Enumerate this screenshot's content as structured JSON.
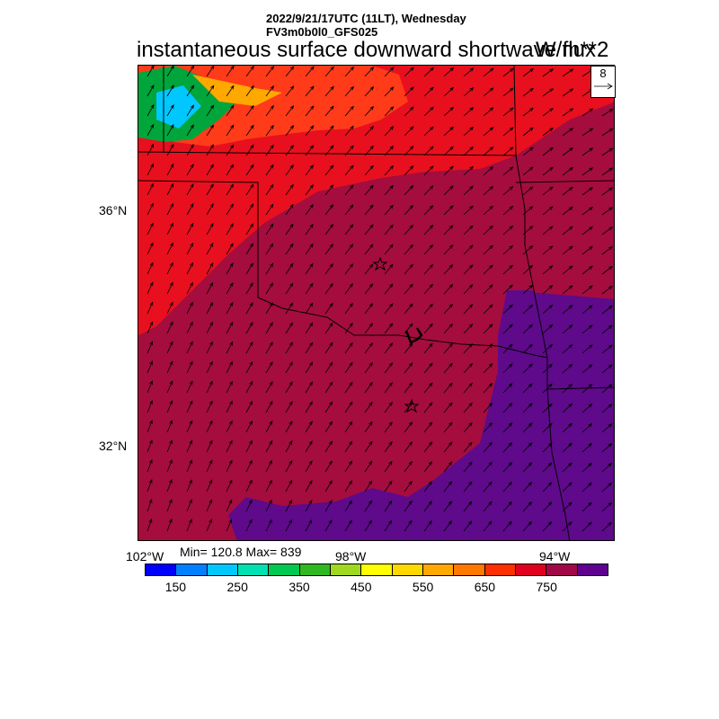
{
  "header": {
    "line1": "2022/9/21/17UTC (11LT), Wednesday",
    "line2": "FV3m0b0l0_GFS025",
    "title": "instantaneous surface downward shortwave flux",
    "units": "W/m**2"
  },
  "stats": {
    "minmax": "Min= 120.8 Max= 839"
  },
  "vector_legend": {
    "magnitude": "8"
  },
  "axes": {
    "lat_labels": [
      "36°N",
      "32°N"
    ],
    "lon_labels": [
      "102°W",
      "98°W",
      "94°W"
    ]
  },
  "colorbar": {
    "colors": [
      "#0000ff",
      "#0080ff",
      "#00c8ff",
      "#00e0b0",
      "#00c850",
      "#30b820",
      "#a0d820",
      "#ffff00",
      "#ffd800",
      "#ffa800",
      "#ff7800",
      "#ff3000",
      "#e00020",
      "#a00848",
      "#600090"
    ],
    "labels": [
      "150",
      "250",
      "350",
      "450",
      "550",
      "650",
      "750"
    ]
  },
  "colors": {
    "field_high": "#a50d3f",
    "field_highest": "#5e0a8a",
    "field_mid": "#e8101e",
    "field_mid2": "#ff3b1a",
    "field_low": "#00a53c"
  },
  "markers": {
    "count": 2,
    "symbol": "star"
  }
}
